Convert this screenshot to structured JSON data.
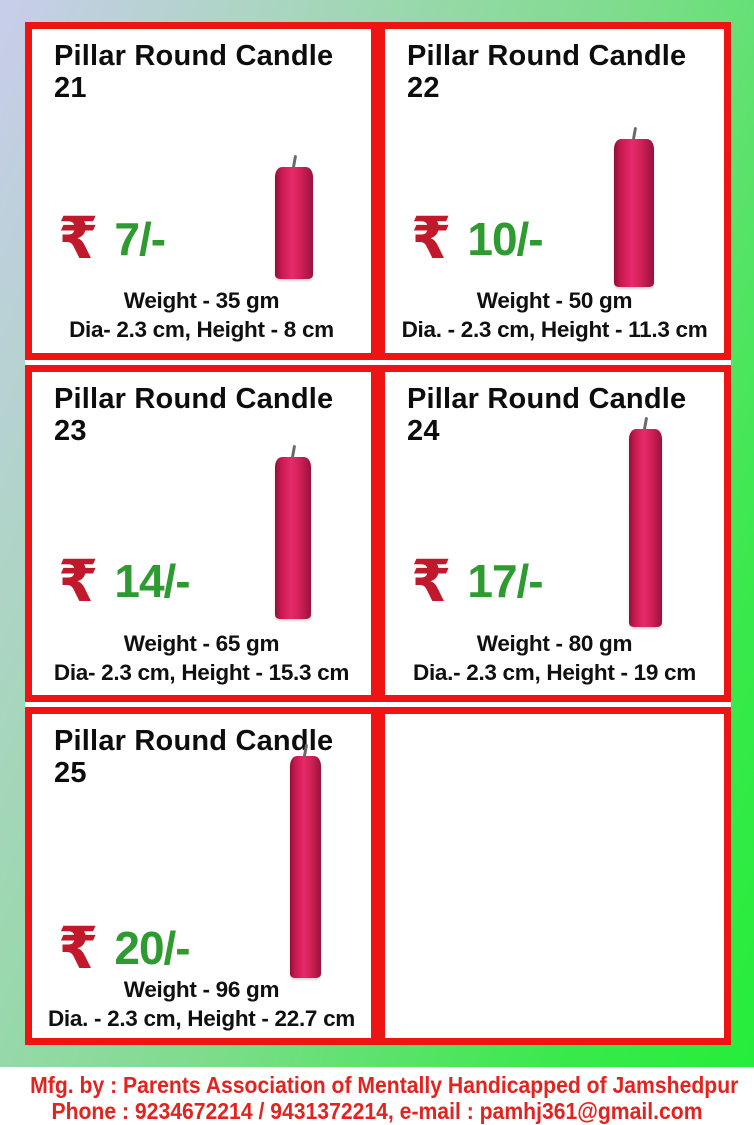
{
  "labels": {
    "rupee": "₹"
  },
  "colors": {
    "border_red": "#ee1414",
    "rupee_red": "#c2182b",
    "price_green": "#2d9b30",
    "footer_red": "#e2231f",
    "candle_crimson": "#d22057",
    "background_left": "#c9cdeb",
    "background_right": "#23ee38"
  },
  "products": [
    {
      "name": "Pillar Round Candle",
      "number": "21",
      "price": "7/-",
      "weight": "Weight - 35 gm",
      "dimensions": "Dia- 2.3 cm, Height - 8 cm"
    },
    {
      "name": "Pillar Round Candle",
      "number": "22",
      "price": "10/-",
      "weight": "Weight - 50 gm",
      "dimensions": "Dia. - 2.3 cm, Height - 11.3 cm"
    },
    {
      "name": "Pillar Round Candle",
      "number": "23",
      "price": "14/-",
      "weight": "Weight - 65 gm",
      "dimensions": "Dia- 2.3 cm, Height - 15.3 cm"
    },
    {
      "name": "Pillar Round Candle",
      "number": "24",
      "price": "17/-",
      "weight": "Weight - 80 gm",
      "dimensions": "Dia.- 2.3 cm, Height - 19 cm"
    },
    {
      "name": "Pillar Round Candle",
      "number": "25",
      "price": "20/-",
      "weight": "Weight - 96 gm",
      "dimensions": "Dia. - 2.3 cm, Height - 22.7 cm"
    }
  ],
  "footer": {
    "line1": "Mfg. by : Parents Association of Mentally Handicapped of Jamshedpur",
    "line2": "Phone : 9234672214 / 9431372214, e-mail : pamhj361@gmail.com"
  }
}
